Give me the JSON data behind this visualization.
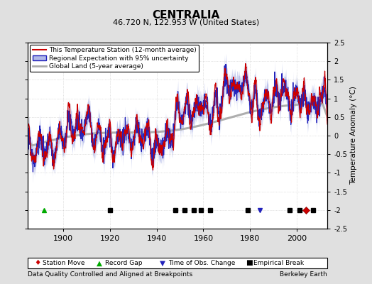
{
  "title": "CENTRALIA",
  "subtitle": "46.720 N, 122.953 W (United States)",
  "ylabel": "Temperature Anomaly (°C)",
  "footnote_left": "Data Quality Controlled and Aligned at Breakpoints",
  "footnote_right": "Berkeley Earth",
  "year_start": 1885,
  "year_end": 2013,
  "xlim": [
    1885,
    2013
  ],
  "ylim": [
    -2.5,
    2.5
  ],
  "yticks": [
    -2.5,
    -2,
    -1.5,
    -1,
    -0.5,
    0,
    0.5,
    1,
    1.5,
    2,
    2.5
  ],
  "xticks": [
    1900,
    1920,
    1940,
    1960,
    1980,
    2000
  ],
  "background_color": "#e0e0e0",
  "plot_bg_color": "#ffffff",
  "grid_color": "#c8c8c8",
  "station_color": "#cc0000",
  "regional_color": "#2222bb",
  "regional_fill_color": "#b0b8e8",
  "global_color": "#aaaaaa",
  "legend_items": [
    "This Temperature Station (12-month average)",
    "Regional Expectation with 95% uncertainty",
    "Global Land (5-year average)"
  ],
  "marker_events": {
    "station_move": [
      2004
    ],
    "record_gap": [
      1892
    ],
    "time_obs_change": [
      1984
    ],
    "empirical_break": [
      1920,
      1948,
      1952,
      1956,
      1959,
      1963,
      1979,
      1997,
      2001,
      2007
    ]
  },
  "seed": 42
}
